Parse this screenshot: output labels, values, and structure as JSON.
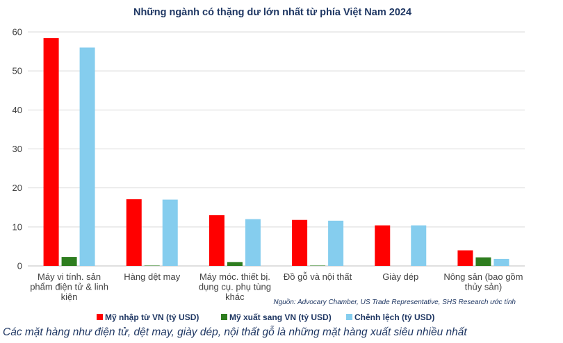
{
  "chart_data": {
    "type": "bar",
    "title": "Những ngành có thặng dư lớn nhất từ phía Việt Nam 2024",
    "categories": [
      [
        "Máy vi tính. sản",
        "phẩm điện tử & linh",
        "kiện"
      ],
      [
        "Hàng dệt may"
      ],
      [
        "Máy móc. thiết bị.",
        "dụng cụ. phụ tùng",
        "khác"
      ],
      [
        "Đồ gỗ và nội thất"
      ],
      [
        "Giày dép"
      ],
      [
        "Nông sản (bao gồm",
        "thủy sản)"
      ]
    ],
    "series": [
      {
        "name": "Mỹ nhập từ VN (tỷ USD)",
        "color": "#ff0000",
        "values": [
          58.4,
          17.1,
          13.0,
          11.8,
          10.4,
          4.0
        ]
      },
      {
        "name": "Mỹ xuất sang VN (tỷ USD)",
        "color": "#2e7d1f",
        "values": [
          2.3,
          0.1,
          1.0,
          0.1,
          0.0,
          2.2
        ]
      },
      {
        "name": "Chênh lệch (tỷ USD)",
        "color": "#85cdee",
        "values": [
          56.0,
          17.0,
          12.0,
          11.6,
          10.4,
          1.8
        ]
      }
    ],
    "ylim": [
      0,
      60
    ],
    "yticks": [
      0,
      10,
      20,
      30,
      40,
      50,
      60
    ],
    "grid": true,
    "legend_position": "bottom",
    "source": "Nguồn: Advocary Chamber, US Trade Representative, SHS Research ước tính"
  },
  "caption": "Các mặt hàng như điện tử, dệt may, giày dép, nội thất gỗ là những mặt hàng xuất siêu nhiều nhất"
}
